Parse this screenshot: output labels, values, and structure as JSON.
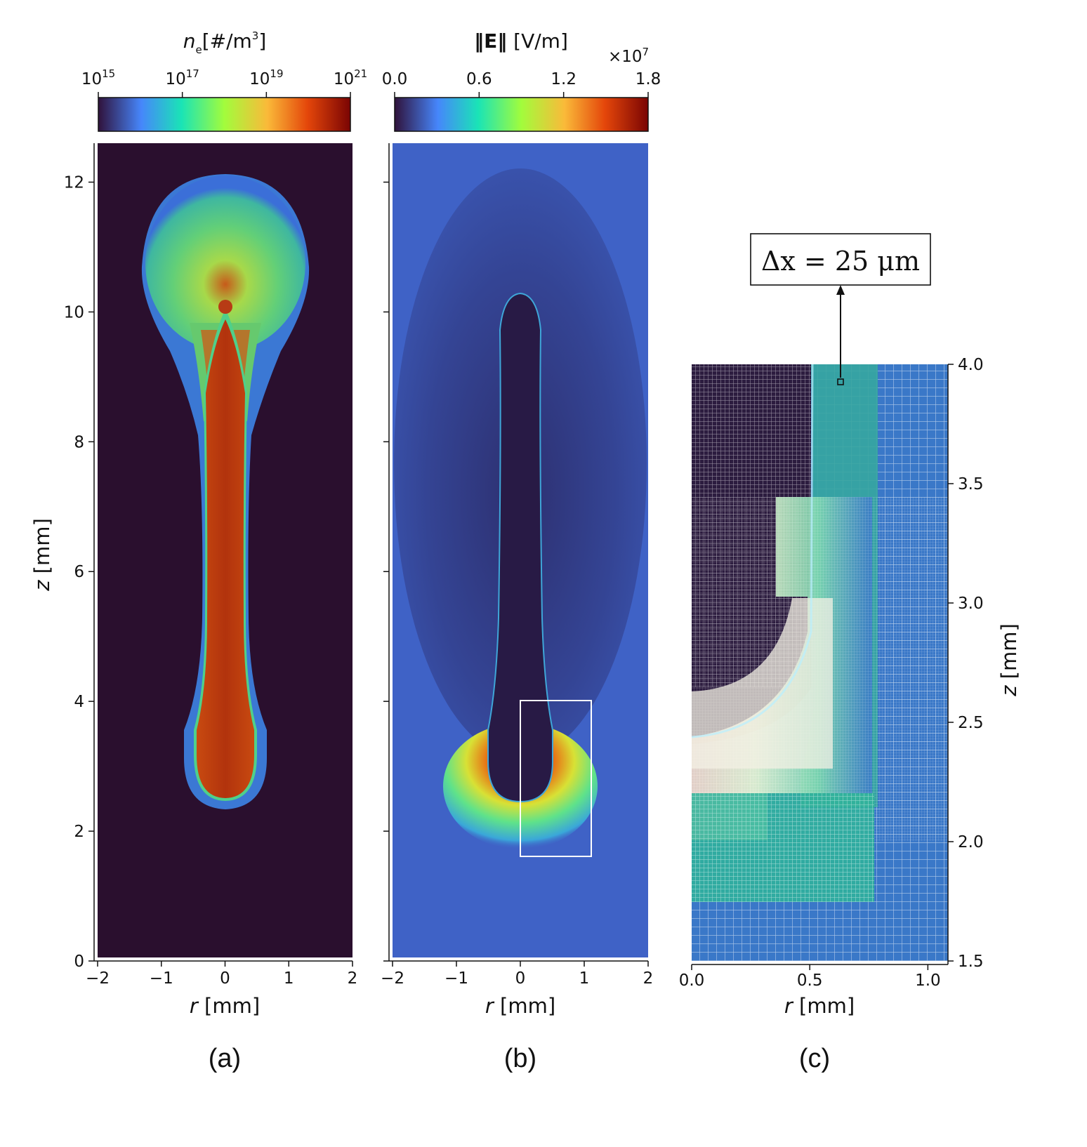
{
  "chart_data": [
    {
      "type": "heatmap",
      "panel_label": "(a)",
      "quantity_label": "n",
      "quantity_sub": "e",
      "quantity_unit": "[#/m",
      "quantity_unit_sup": "3",
      "quantity_unit_close": "]",
      "colorbar_scale": "log",
      "colorbar_range": [
        1000000000000000.0,
        1e+21
      ],
      "colorbar_ticks": [
        {
          "base": "10",
          "exp": "15"
        },
        {
          "base": "10",
          "exp": "17"
        },
        {
          "base": "10",
          "exp": "19"
        },
        {
          "base": "10",
          "exp": "21"
        }
      ],
      "xlabel_var": "r",
      "xlabel_unit": " [mm]",
      "ylabel_var": "z",
      "ylabel_unit": " [mm]",
      "xlim": [
        -2,
        2
      ],
      "ylim": [
        0,
        12.6
      ],
      "xticks": [
        "−2",
        "−1",
        "0",
        "1",
        "2"
      ],
      "yticks": [
        "0",
        "2",
        "4",
        "6",
        "8",
        "10",
        "12"
      ],
      "colormap": [
        "#30123b",
        "#4686fb",
        "#1ae4b6",
        "#a2fc3c",
        "#faba39",
        "#e4460a",
        "#7a0403"
      ],
      "background_color": "#2a0f2e",
      "channel_color": "#b8350c",
      "head_color": "#53c97f"
    },
    {
      "type": "heatmap",
      "panel_label": "(b)",
      "quantity_label": "‖E‖",
      "quantity_unit": " [V/m]",
      "colorbar_scale": "linear",
      "colorbar_range": [
        0.0,
        1.8
      ],
      "colorbar_multiplier": "×10",
      "colorbar_multiplier_exp": "7",
      "colorbar_ticks": [
        "0.0",
        "0.6",
        "1.2",
        "1.8"
      ],
      "xlabel_var": "r",
      "xlabel_unit": " [mm]",
      "xlim": [
        -2,
        2
      ],
      "ylim": [
        0,
        12.6
      ],
      "xticks": [
        "−2",
        "−1",
        "0",
        "1",
        "2"
      ],
      "inset_box": {
        "r": [
          0,
          1.1
        ],
        "z": [
          1.6,
          4.0
        ]
      },
      "field_color_far": "#3f5fc0",
      "field_color_inside": "#281a45",
      "field_color_peak": "#c8340c"
    },
    {
      "type": "heatmap",
      "panel_label": "(c)",
      "annotation": "Δx = 25 μm",
      "xlabel_var": "r",
      "xlabel_unit": " [mm]",
      "ylabel_var": "z",
      "ylabel_unit": " [mm]",
      "xlim": [
        0,
        1.1
      ],
      "ylim": [
        1.5,
        4.0
      ],
      "xticks": [
        "0.0",
        "0.5",
        "1.0"
      ],
      "xtick_values": [
        0.0,
        0.5,
        1.0
      ],
      "yticks": [
        "1.5",
        "2.0",
        "2.5",
        "3.0",
        "3.5",
        "4.0"
      ],
      "ytick_values": [
        1.5,
        2.0,
        2.5,
        3.0,
        3.5,
        4.0
      ],
      "yaxis_side": "right",
      "grid_overlay": true,
      "grid_spacing_um": 25
    }
  ]
}
